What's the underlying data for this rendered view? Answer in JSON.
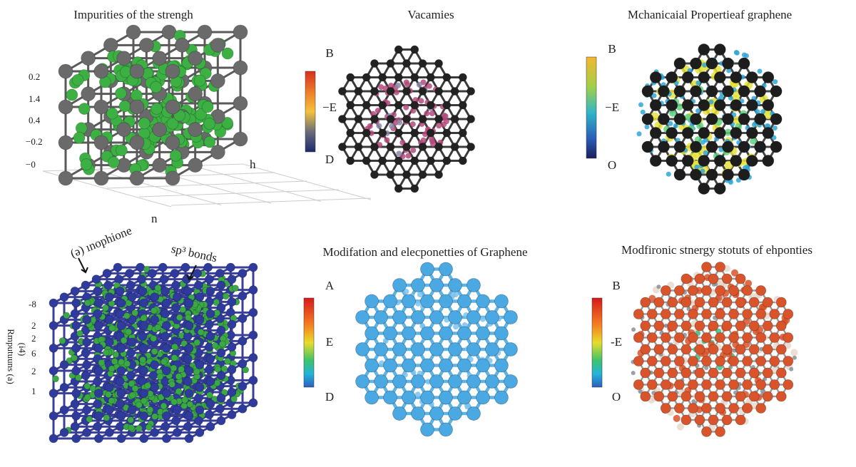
{
  "panels": [
    {
      "title": "Impurities of the strengh",
      "axis_labels": [
        "0.2",
        "1.4",
        "0.4",
        "−0.2",
        "−0"
      ],
      "corner_labels": [
        "h",
        "n"
      ]
    },
    {
      "title": "Vacamies",
      "scale_labels": [
        "B",
        "−E",
        "D"
      ]
    },
    {
      "title": "Mchanicaial Propertieaf graphene",
      "scale_labels": [
        "B",
        "−E",
        "O"
      ]
    },
    {
      "annotations": [
        "(ǝ) ınophione",
        "sp³ bonds"
      ],
      "axis_labels": [
        "-8",
        "2",
        "2",
        "6",
        "2",
        "1"
      ],
      "axis_title": [
        "Rmputuuns (a)",
        "(i4)"
      ]
    },
    {
      "title": "Modifation and elecponetties of Graphene",
      "scale_labels": [
        "A",
        "E",
        "D"
      ]
    },
    {
      "title": "Modfironic stnergy stotuts of ehponties",
      "scale_labels": [
        "B",
        "-E",
        "O"
      ]
    }
  ]
}
